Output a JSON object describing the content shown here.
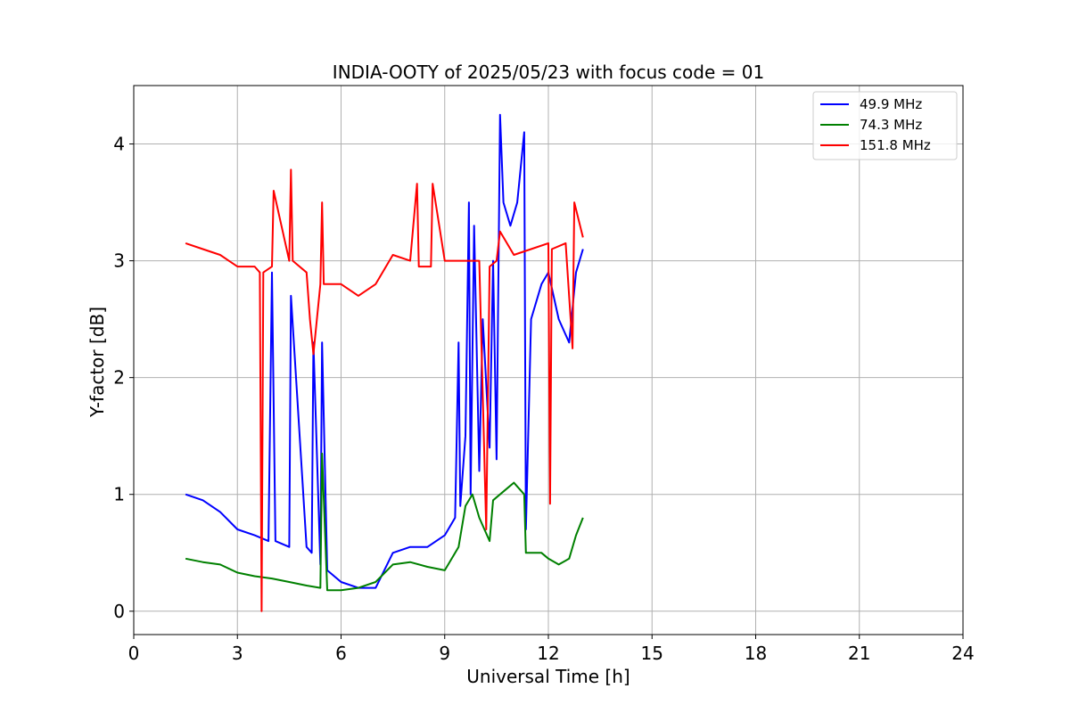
{
  "chart_data": {
    "type": "line",
    "title": "INDIA-OOTY of 2025/05/23 with focus code = 01",
    "xlabel": "Universal Time [h]",
    "ylabel": "Y-factor [dB]",
    "xlim": [
      0,
      24
    ],
    "ylim": [
      -0.2,
      4.5
    ],
    "xticks": [
      0,
      3,
      6,
      9,
      12,
      15,
      18,
      21,
      24
    ],
    "yticks": [
      0,
      1,
      2,
      3,
      4
    ],
    "grid": true,
    "legend_position": "top-right",
    "series": [
      {
        "name": " 49.9 MHz",
        "color": "#0000ff",
        "x": [
          1.5,
          2.0,
          2.5,
          3.0,
          3.5,
          3.9,
          4.0,
          4.1,
          4.5,
          4.55,
          5.0,
          5.15,
          5.2,
          5.4,
          5.45,
          5.6,
          6.0,
          6.5,
          7.0,
          7.5,
          8.0,
          8.5,
          9.0,
          9.3,
          9.4,
          9.45,
          9.6,
          9.7,
          9.75,
          9.85,
          10.0,
          10.1,
          10.3,
          10.4,
          10.5,
          10.6,
          10.7,
          10.9,
          11.1,
          11.3,
          11.35,
          11.5,
          11.8,
          12.0,
          12.3,
          12.6,
          12.8,
          13.0
        ],
        "y": [
          1.0,
          0.95,
          0.85,
          0.7,
          0.65,
          0.6,
          2.9,
          0.6,
          0.55,
          2.7,
          0.55,
          0.5,
          2.3,
          0.4,
          2.3,
          0.35,
          0.25,
          0.2,
          0.2,
          0.5,
          0.55,
          0.55,
          0.65,
          0.8,
          2.3,
          0.9,
          1.5,
          3.5,
          1.0,
          3.3,
          1.2,
          2.5,
          1.4,
          3.0,
          1.3,
          4.25,
          3.5,
          3.3,
          3.5,
          4.1,
          0.7,
          2.5,
          2.8,
          2.9,
          2.5,
          2.3,
          2.9,
          3.1
        ]
      },
      {
        "name": " 74.3 MHz",
        "color": "#008000",
        "x": [
          1.5,
          2.0,
          2.5,
          3.0,
          3.5,
          4.0,
          4.5,
          5.0,
          5.4,
          5.45,
          5.6,
          6.0,
          6.5,
          7.0,
          7.5,
          8.0,
          8.5,
          9.0,
          9.4,
          9.6,
          9.8,
          10.0,
          10.3,
          10.4,
          10.6,
          10.8,
          11.0,
          11.3,
          11.35,
          11.5,
          11.8,
          12.0,
          12.3,
          12.6,
          12.8,
          13.0
        ],
        "y": [
          0.45,
          0.42,
          0.4,
          0.33,
          0.3,
          0.28,
          0.25,
          0.22,
          0.2,
          1.35,
          0.18,
          0.18,
          0.2,
          0.25,
          0.4,
          0.42,
          0.38,
          0.35,
          0.55,
          0.9,
          1.0,
          0.8,
          0.6,
          0.95,
          1.0,
          1.05,
          1.1,
          1.0,
          0.5,
          0.5,
          0.5,
          0.45,
          0.4,
          0.45,
          0.65,
          0.8
        ]
      },
      {
        "name": " 151.8 MHz",
        "color": "#ff0000",
        "x": [
          1.5,
          2.0,
          2.5,
          3.0,
          3.5,
          3.65,
          3.7,
          3.75,
          4.0,
          4.05,
          4.5,
          4.55,
          4.6,
          5.0,
          5.1,
          5.2,
          5.3,
          5.4,
          5.45,
          5.5,
          6.0,
          6.5,
          7.0,
          7.5,
          8.0,
          8.2,
          8.25,
          8.6,
          8.65,
          9.0,
          9.5,
          10.0,
          10.2,
          10.3,
          10.5,
          10.6,
          11.0,
          11.5,
          12.0,
          12.05,
          12.1,
          12.5,
          12.7,
          12.75,
          13.0
        ],
        "y": [
          3.15,
          3.1,
          3.05,
          2.95,
          2.95,
          2.9,
          0.0,
          2.9,
          2.95,
          3.6,
          3.0,
          3.78,
          3.0,
          2.9,
          2.5,
          2.2,
          2.5,
          2.8,
          3.5,
          2.8,
          2.8,
          2.7,
          2.8,
          3.05,
          3.0,
          3.66,
          2.95,
          2.95,
          3.66,
          3.0,
          3.0,
          3.0,
          0.7,
          2.95,
          3.0,
          3.25,
          3.05,
          3.1,
          3.15,
          0.92,
          3.1,
          3.15,
          2.25,
          3.5,
          3.2
        ]
      }
    ]
  }
}
